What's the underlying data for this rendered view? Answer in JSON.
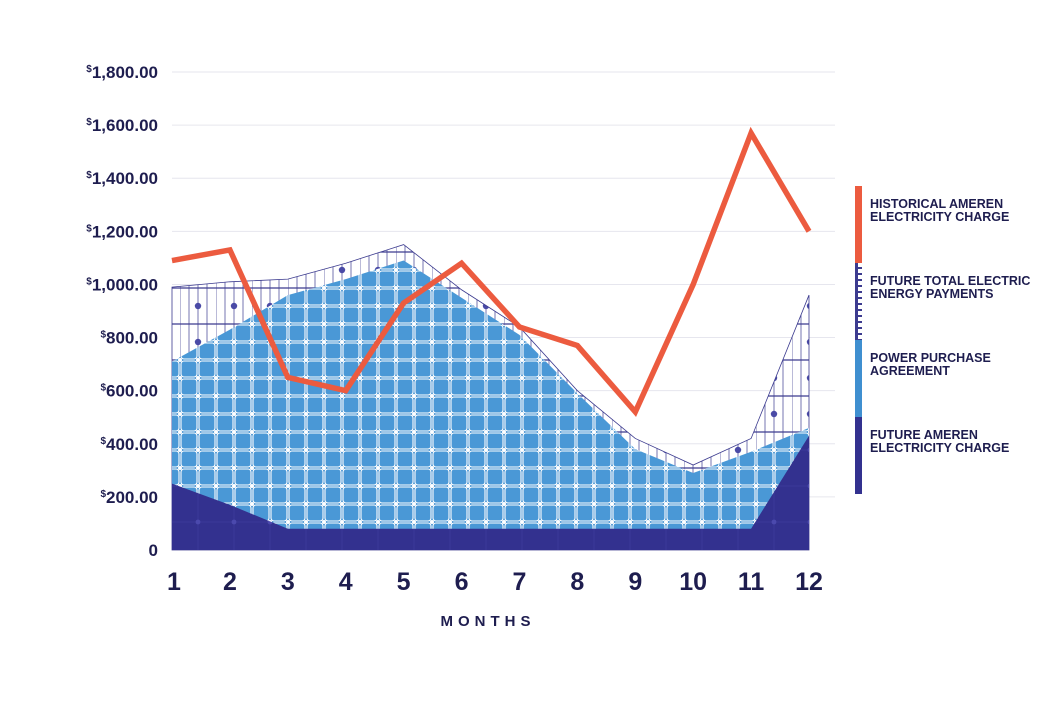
{
  "chart_data": {
    "type": "area",
    "x": [
      "1",
      "2",
      "3",
      "4",
      "5",
      "6",
      "7",
      "8",
      "9",
      "10",
      "11",
      "12"
    ],
    "xlabel": "MONTHS",
    "ylabel": "",
    "ylim": [
      0,
      1800
    ],
    "yticks": [
      {
        "value": 0,
        "prefix": "",
        "text": "0"
      },
      {
        "value": 200,
        "prefix": "$",
        "text": "200.00"
      },
      {
        "value": 400,
        "prefix": "$",
        "text": "400.00"
      },
      {
        "value": 600,
        "prefix": "$",
        "text": "600.00"
      },
      {
        "value": 800,
        "prefix": "$",
        "text": "800.00"
      },
      {
        "value": 1000,
        "prefix": "$",
        "text": "1,000.00"
      },
      {
        "value": 1200,
        "prefix": "$",
        "text": "1,200.00"
      },
      {
        "value": 1400,
        "prefix": "$",
        "text": "1,400.00"
      },
      {
        "value": 1600,
        "prefix": "$",
        "text": "1,600.00"
      },
      {
        "value": 1800,
        "prefix": "$",
        "text": "1,800.00"
      }
    ],
    "grid": true,
    "legend_position": "right",
    "series": [
      {
        "name": "HISTORICAL AMEREN ELECTRICITY CHARGE",
        "kind": "line",
        "color": "#ec5b3f",
        "values": [
          1090,
          1130,
          650,
          600,
          930,
          1080,
          840,
          770,
          520,
          1000,
          1570,
          1200
        ]
      },
      {
        "name": "FUTURE TOTAL ELECTRIC ENERGY PAYMENTS",
        "kind": "area",
        "color": "#3c3b8f",
        "values": [
          990,
          1010,
          1020,
          1080,
          1150,
          980,
          840,
          600,
          420,
          320,
          420,
          960
        ]
      },
      {
        "name": "POWER PURCHASE AGREEMENT",
        "kind": "area",
        "color": "#3f8fd0",
        "values": [
          710,
          830,
          960,
          1020,
          1090,
          950,
          810,
          590,
          380,
          290,
          370,
          460
        ]
      },
      {
        "name": "FUTURE AMEREN ELECTRICITY CHARGE",
        "kind": "area",
        "color": "#33318f",
        "values": [
          250,
          170,
          80,
          80,
          80,
          80,
          80,
          80,
          80,
          80,
          80,
          430
        ]
      }
    ]
  },
  "legend": [
    {
      "label": "HISTORICAL AMEREN ELECTRICITY CHARGE",
      "color": "#ec5b3f"
    },
    {
      "label": "FUTURE TOTAL ELECTRIC ENERGY PAYMENTS",
      "color": "#3c3b8f"
    },
    {
      "label": "POWER PURCHASE AGREEMENT",
      "color": "#3f8fd0"
    },
    {
      "label": "FUTURE AMEREN ELECTRICITY CHARGE",
      "color": "#33318f"
    }
  ]
}
